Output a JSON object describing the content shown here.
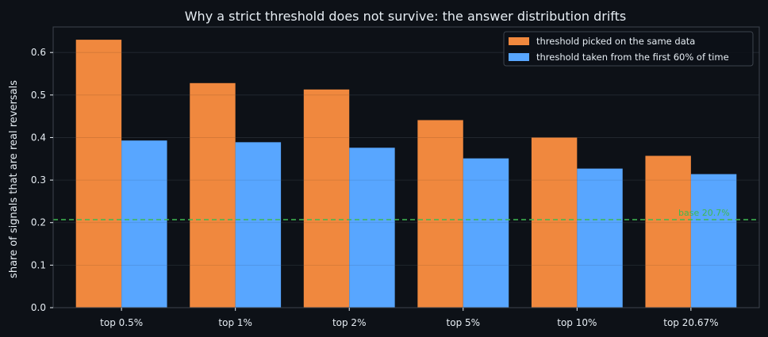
{
  "chart_data": {
    "type": "bar",
    "title": "Why a strict threshold does not survive: the answer distribution drifts",
    "xlabel": "",
    "ylabel": "share of signals that are real reversals",
    "categories": [
      "top 0.5%",
      "top 1%",
      "top 2%",
      "top 5%",
      "top 10%",
      "top 20.67%"
    ],
    "series": [
      {
        "name": "threshold picked on the same data",
        "color": "#f0883e",
        "values": [
          0.63,
          0.528,
          0.513,
          0.441,
          0.4,
          0.357
        ]
      },
      {
        "name": "threshold taken from the first 60% of time",
        "color": "#58a6ff",
        "values": [
          0.393,
          0.389,
          0.376,
          0.351,
          0.327,
          0.314
        ]
      }
    ],
    "ylim": [
      0,
      0.66
    ],
    "yticks": [
      0.0,
      0.1,
      0.2,
      0.3,
      0.4,
      0.5,
      0.6
    ],
    "ytick_labels": [
      "0.0",
      "0.1",
      "0.2",
      "0.3",
      "0.4",
      "0.5",
      "0.6"
    ],
    "baseline": {
      "value": 0.207,
      "label": "base 20.7%",
      "color": "#3fb950"
    },
    "grid": true,
    "legend_position": "top-right",
    "colors": {
      "background": "#0d1117",
      "text": "#e6edf3",
      "axis": "#3d444d",
      "grid": "#2a3038"
    }
  }
}
